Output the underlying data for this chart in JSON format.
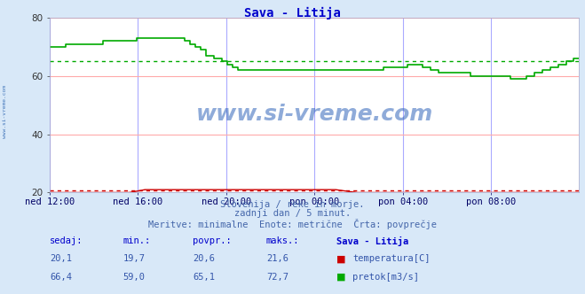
{
  "title": "Sava - Litija",
  "title_color": "#0000cc",
  "bg_color": "#d8e8f8",
  "plot_bg_color": "#ffffff",
  "grid_color_h": "#ffaaaa",
  "grid_color_v": "#aaaaff",
  "x_labels": [
    "ned 12:00",
    "ned 16:00",
    "ned 20:00",
    "pon 00:00",
    "pon 04:00",
    "pon 08:00"
  ],
  "x_ticks_norm": [
    0.0,
    0.1667,
    0.3333,
    0.5,
    0.6667,
    0.8333
  ],
  "ylim": [
    20,
    80
  ],
  "yticks": [
    20,
    40,
    60,
    80
  ],
  "temp_avg": 20.6,
  "flow_avg": 65.1,
  "temp_color": "#cc0000",
  "flow_color": "#00aa00",
  "subtitle1": "Slovenija / reke in morje.",
  "subtitle2": "zadnji dan / 5 minut.",
  "subtitle3": "Meritve: minimalne  Enote: metrične  Črta: povprečje",
  "subtitle_color": "#4466aa",
  "table_header_color": "#0000cc",
  "table_header_bold": "#000088",
  "temp_row": [
    "20,1",
    "19,7",
    "20,6",
    "21,6"
  ],
  "flow_row": [
    "66,4",
    "59,0",
    "65,1",
    "72,7"
  ],
  "row_color": "#3355aa",
  "temp_label": "temperatura[C]",
  "flow_label": "pretok[m3/s]",
  "watermark": "www.si-vreme.com",
  "watermark_color": "#3366bb",
  "side_text": "www.si-vreme.com",
  "side_color": "#4477bb",
  "flow_data_x": [
    0.0,
    0.01,
    0.03,
    0.06,
    0.08,
    0.1,
    0.115,
    0.13,
    0.145,
    0.155,
    0.165,
    0.175,
    0.185,
    0.195,
    0.205,
    0.215,
    0.225,
    0.235,
    0.245,
    0.255,
    0.265,
    0.275,
    0.285,
    0.295,
    0.31,
    0.325,
    0.335,
    0.345,
    0.355,
    0.365,
    0.375,
    0.385,
    0.395,
    0.41,
    0.43,
    0.45,
    0.47,
    0.49,
    0.51,
    0.53,
    0.55,
    0.57,
    0.59,
    0.61,
    0.63,
    0.645,
    0.66,
    0.675,
    0.69,
    0.705,
    0.72,
    0.735,
    0.75,
    0.765,
    0.78,
    0.795,
    0.81,
    0.825,
    0.84,
    0.855,
    0.87,
    0.885,
    0.9,
    0.915,
    0.93,
    0.945,
    0.96,
    0.975,
    0.99,
    1.0
  ],
  "flow_data_y": [
    70,
    70,
    71,
    71,
    71,
    72,
    72,
    72,
    72,
    72,
    73,
    73,
    73,
    73,
    73,
    73,
    73,
    73,
    73,
    72,
    71,
    70,
    69,
    67,
    66,
    65,
    64,
    63,
    62,
    62,
    62,
    62,
    62,
    62,
    62,
    62,
    62,
    62,
    62,
    62,
    62,
    62,
    62,
    62,
    63,
    63,
    63,
    64,
    64,
    63,
    62,
    61,
    61,
    61,
    61,
    60,
    60,
    60,
    60,
    60,
    59,
    59,
    60,
    61,
    62,
    63,
    64,
    65,
    66,
    66
  ],
  "temp_data_x": [
    0.0,
    0.04,
    0.1,
    0.15,
    0.18,
    0.21,
    0.24,
    0.27,
    0.3,
    0.34,
    0.4,
    0.45,
    0.5,
    0.54,
    0.58,
    0.62,
    0.66,
    0.7,
    0.74,
    0.78,
    0.82,
    0.86,
    0.9,
    0.94,
    0.98,
    1.0
  ],
  "temp_data_y": [
    20,
    20,
    20,
    20,
    21,
    21,
    21,
    21,
    21,
    21,
    21,
    21,
    21,
    21,
    20,
    20,
    20,
    20,
    20,
    20,
    20,
    20,
    20,
    20,
    20,
    20
  ],
  "table_headers": [
    "sedaj:",
    "min.:",
    "povpr.:",
    "maks.:",
    "Sava - Litija"
  ]
}
